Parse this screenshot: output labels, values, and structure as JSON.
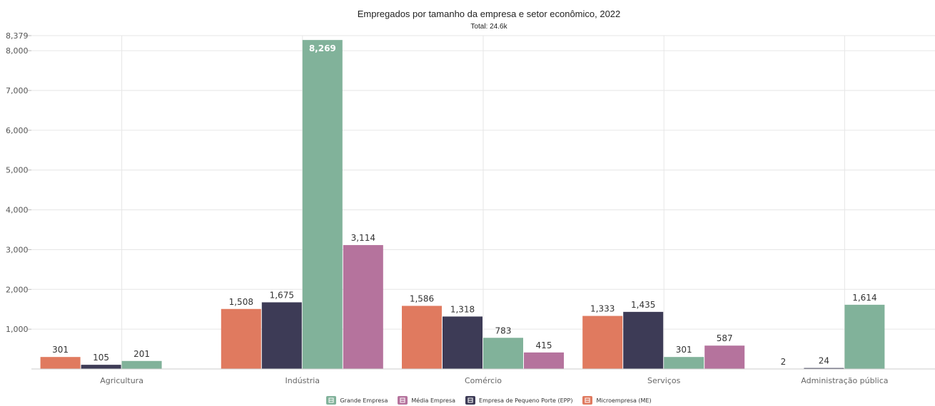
{
  "chart_data": {
    "type": "bar",
    "title": "Empregados por tamanho da empresa e setor econômico, 2022",
    "subtitle": "Total: 24.6k",
    "categories": [
      "Agricultura",
      "Indústria",
      "Comércio",
      "Serviços",
      "Administração pública"
    ],
    "series": [
      {
        "name": "Microempresa (ME)",
        "color": "#E07A5F",
        "values": [
          301,
          1508,
          1586,
          1333,
          2
        ]
      },
      {
        "name": "Empresa de Pequeno Porte (EPP)",
        "color": "#3D3B56",
        "values": [
          105,
          1675,
          1318,
          1435,
          24
        ]
      },
      {
        "name": "Grande Empresa",
        "color": "#81B29A",
        "values": [
          201,
          8269,
          783,
          301,
          1614
        ]
      },
      {
        "name": "Média Empresa",
        "color": "#B5739D",
        "values": [
          null,
          3114,
          415,
          587,
          null
        ]
      }
    ],
    "y_ticks": [
      1000,
      2000,
      3000,
      4000,
      5000,
      6000,
      7000,
      8000,
      8379
    ],
    "ylim": [
      0,
      8379
    ],
    "grid": true,
    "legend": {
      "position": "bottom",
      "order": [
        "Grande Empresa",
        "Média Empresa",
        "Empresa de Pequeno Porte (EPP)",
        "Microempresa (ME)"
      ],
      "icons": [
        "building-icon",
        "office-icon",
        "store-icon",
        "shop-icon"
      ]
    }
  }
}
